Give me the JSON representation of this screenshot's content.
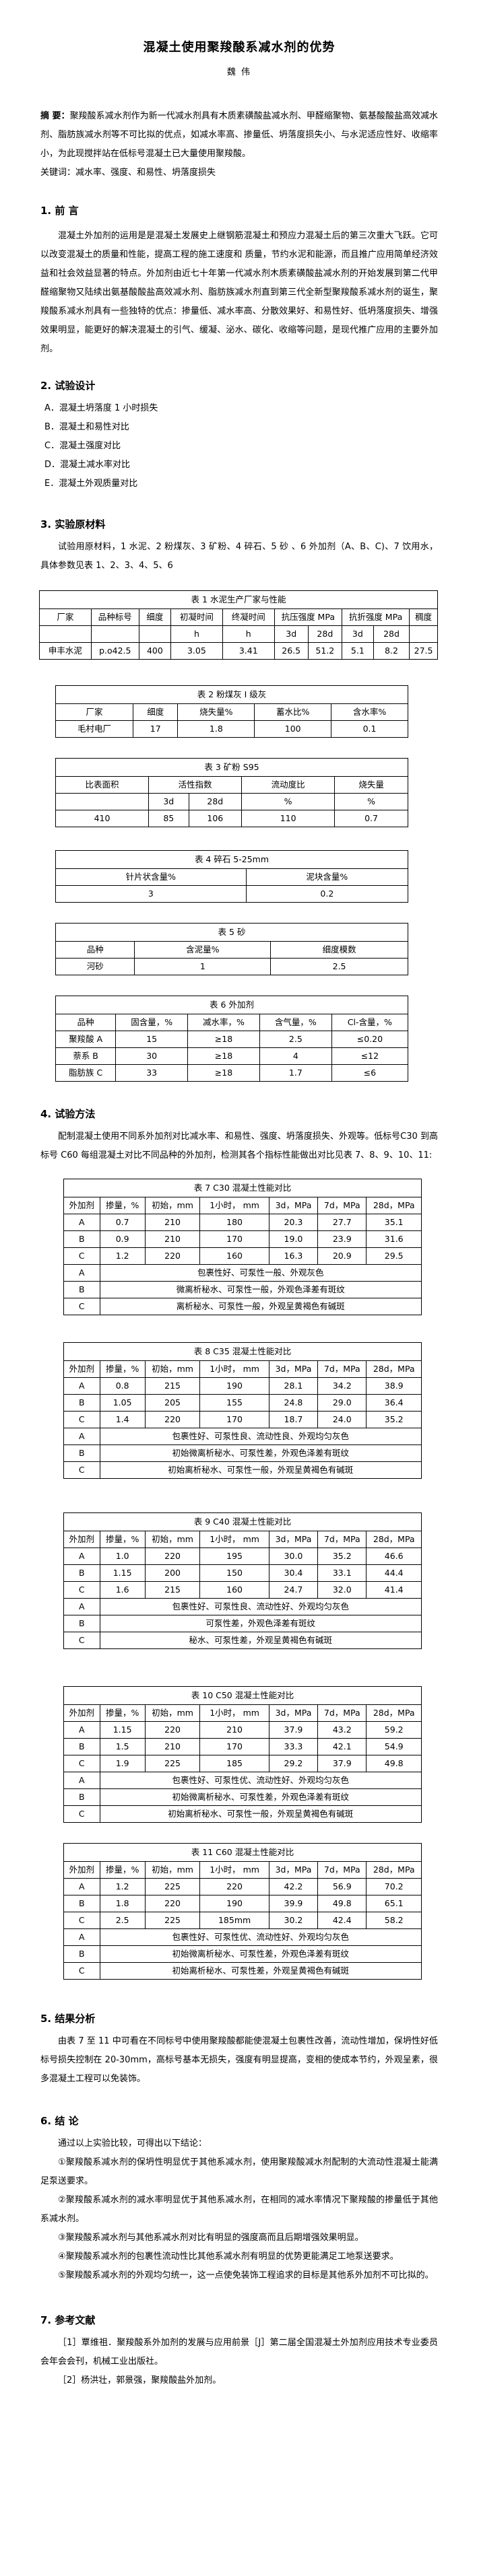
{
  "page": {
    "title": "混凝土使用聚羧酸系减水剂的优势",
    "author": "魏 伟",
    "abstract_label": "摘 要：",
    "abstract_text": "聚羧酸系减水剂作为新一代减水剂具有木质素磺酸盐减水剂、甲醛缩聚物、氨基酸酸盐高效减水剂、脂肪族减水剂等不可比拟的优点，如减水率高、掺量低、坍落度损失小、与水泥适应性好、收缩率小，为此现搅拌站在低标号混凝土已大量使用聚羧酸。",
    "keywords": "关键词：减水率、强度、和易性、坍落度损失"
  },
  "sections": {
    "s1": {
      "heading": "1. 前 言",
      "body": "混凝土外加剂的运用是是混凝土发展史上继钢筋混凝土和预应力混凝土后的第三次重大飞跃。它可以改变混凝土的质量和性能，提高工程的施工速度和 质量，节约水泥和能源，而且推广应用简单经济效益和社会效益显著的特点。外加剂由近七十年第一代减水剂木质素磺酸盐减水剂的开始发展到第二代甲醛缩聚物又陆续出氨基酸酸盐高效减水剂、脂肪族减水剂直到第三代全新型聚羧酸系减水剂的诞生，聚羧酸系减水剂具有一些独特的优点：掺量低、减水率高、分散效果好、和易性好、低坍落度损失、增强效果明显，能更好的解决混凝土的引气、缓凝、泌水、碳化、收缩等问题，是现代推广应用的主要外加剂。"
    },
    "s2": {
      "heading": "2. 试验设计",
      "items": [
        "A．混凝土坍落度 1 小时损失",
        "B．混凝土和易性对比",
        "C．混凝土强度对比",
        "D．混凝土减水率对比",
        "E．混凝土外观质量对比"
      ]
    },
    "s3": {
      "heading": "3. 实验原材料",
      "body": "试验用原材料，1 水泥、2 粉煤灰、3 矿粉、4 碎石、5 砂 、6 外加剂（A、B、C)、7 饮用水，具体参数见表 1、2、3、4、5、6"
    },
    "s4": {
      "heading": "4. 试验方法",
      "body": "配制混凝土使用不同系外加剂对比减水率、和易性、强度、坍落度损失、外观等。低标号C30 到高标号 C60 每组混凝土对比不同品种的外加剂，检测其各个指标性能做出对比见表 7、8、9、10、11:"
    },
    "s5": {
      "heading": "5. 结果分析",
      "body": "由表 7 至 11 中可看在不同标号中使用聚羧酸都能使混凝土包裹性改善，流动性增加，保坍性好低标号损失控制在 20-30mm，高标号基本无损失，强度有明显提高，变相的使成本节约，外观呈素，很多混凝土工程可以免装饰。"
    },
    "s6": {
      "heading": "6. 结 论",
      "intro": "通过以上实验比较，可得出以下结论：",
      "items": [
        "①聚羧酸系减水剂的保坍性明显优于其他系减水剂，使用聚羧酸减水剂配制的大流动性混凝土能满足泵送要求。",
        "②聚羧酸系减水剂的减水率明显优于其他系减水剂，在相同的减水率情况下聚羧酸的掺量低于其他系减水剂。",
        "③聚羧酸系减水剂与其他系减水剂对比有明显的强度高而且后期增强效果明显。",
        "④聚羧酸系减水剂的包裹性流动性比其他系减水剂有明显的优势更能满足工地泵送要求。",
        "⑤聚羧酸系减水剂的外观均匀统一，这一点使免装饰工程追求的目标是其他系外加剂不可比拟的。"
      ]
    },
    "s7": {
      "heading": "7. 参考文献",
      "items": [
        "［1］覃维祖．聚羧酸系外加剂的发展与应用前景［J］第二届全国混凝土外加剂应用技术专业委员会年会会刊，机械工业出版社。",
        "［2］杨洪壮，郭景强，聚羧酸盐外加剂。"
      ]
    }
  },
  "tables": {
    "t1": {
      "title": "表 1 水泥生产厂家与性能",
      "cols": 10,
      "header": [
        [
          {
            "t": "厂家"
          },
          {
            "t": "品种标号"
          },
          {
            "t": "细度"
          },
          {
            "t": "初凝时间"
          },
          {
            "t": "终凝时间"
          },
          {
            "t": "抗压强度 MPa",
            "cs": 2
          },
          {
            "t": "抗折强度 MPa",
            "cs": 2
          },
          {
            "t": "稠度"
          }
        ],
        [
          {
            "t": ""
          },
          {
            "t": ""
          },
          {
            "t": ""
          },
          {
            "t": "h"
          },
          {
            "t": "h"
          },
          {
            "t": "3d"
          },
          {
            "t": "28d"
          },
          {
            "t": "3d"
          },
          {
            "t": "28d"
          },
          {
            "t": ""
          }
        ]
      ],
      "rows": [
        [
          "申丰水泥",
          "p.o42.5",
          "400",
          "3.05",
          "3.41",
          "26.5",
          "51.2",
          "5.1",
          "8.2",
          "27.5"
        ]
      ]
    },
    "t2": {
      "title": "表 2 粉煤灰 I 级灰",
      "cols": 5,
      "header": [
        [
          {
            "t": "厂家"
          },
          {
            "t": "细度"
          },
          {
            "t": "烧失量%"
          },
          {
            "t": "蓄水比%"
          },
          {
            "t": "含水率%"
          }
        ]
      ],
      "rows": [
        [
          "毛村电厂",
          "17",
          "1.8",
          "100",
          "0.1"
        ]
      ]
    },
    "t3": {
      "title": "表 3 矿粉 S95",
      "cols": 5,
      "header": [
        [
          {
            "t": "比表面积"
          },
          {
            "t": "活性指数",
            "cs": 2
          },
          {
            "t": "流动度比"
          },
          {
            "t": "烧失量"
          }
        ],
        [
          {
            "t": ""
          },
          {
            "t": "3d"
          },
          {
            "t": "28d"
          },
          {
            "t": "%"
          },
          {
            "t": "%"
          }
        ]
      ],
      "rows": [
        [
          "410",
          "85",
          "106",
          "110",
          "0.7"
        ]
      ]
    },
    "t4": {
      "title": "表 4 碎石  5-25mm",
      "cols": 2,
      "header": [
        [
          {
            "t": "针片状含量%"
          },
          {
            "t": "泥块含量%"
          }
        ]
      ],
      "rows": [
        [
          "3",
          "0.2"
        ]
      ]
    },
    "t5": {
      "title": "表 5 砂",
      "cols": 3,
      "header": [
        [
          {
            "t": "品种"
          },
          {
            "t": "含泥量%"
          },
          {
            "t": "细度模数"
          }
        ]
      ],
      "rows": [
        [
          "河砂",
          "1",
          "2.5"
        ]
      ]
    },
    "t6": {
      "title": "表 6 外加剂",
      "cols": 5,
      "header": [
        [
          {
            "t": "品种"
          },
          {
            "t": "固含量，%"
          },
          {
            "t": "减水率，%"
          },
          {
            "t": "含气量，%"
          },
          {
            "t": "Cl-含量，%"
          }
        ]
      ],
      "rows": [
        [
          "聚羧酸 A",
          "15",
          "≥18",
          "2.5",
          "≤0.20"
        ],
        [
          "萘系 B",
          "30",
          "≥18",
          "4",
          "≤12"
        ],
        [
          "脂肪族 C",
          "33",
          "≥18",
          "1.7",
          "≤6"
        ]
      ]
    },
    "t7": {
      "title": "表 7 C30 混凝土性能对比",
      "cols": 7,
      "header": [
        [
          {
            "t": "外加剂"
          },
          {
            "t": "掺量，%"
          },
          {
            "t": "初始，mm"
          },
          {
            "t": "1小时， mm"
          },
          {
            "t": "3d，MPa"
          },
          {
            "t": "7d，MPa"
          },
          {
            "t": "28d，MPa"
          }
        ]
      ],
      "rows": [
        [
          "A",
          "0.7",
          "210",
          "180",
          "20.3",
          "27.7",
          "35.1"
        ],
        [
          "B",
          "0.9",
          "210",
          "170",
          "19.0",
          "23.9",
          "31.6"
        ],
        [
          "C",
          "1.2",
          "220",
          "160",
          "16.3",
          "20.9",
          "29.5"
        ]
      ],
      "remarks": [
        [
          "A",
          "包裹性好、可泵性一般、外观灰色"
        ],
        [
          "B",
          "微离析秘水、可泵性一般，外观色泽差有斑纹"
        ],
        [
          "C",
          "离析秘水、可泵性一般，外观呈黄褐色有碱斑"
        ]
      ]
    },
    "t8": {
      "title": "表 8  C35 混凝土性能对比",
      "cols": 7,
      "header": [
        [
          {
            "t": "外加剂"
          },
          {
            "t": "掺量，%"
          },
          {
            "t": "初始，mm"
          },
          {
            "t": "1小时， mm"
          },
          {
            "t": "3d，MPa"
          },
          {
            "t": "7d，MPa"
          },
          {
            "t": "28d，MPa"
          }
        ]
      ],
      "rows": [
        [
          "A",
          "0.8",
          "215",
          "190",
          "28.1",
          "34.2",
          "38.9"
        ],
        [
          "B",
          "1.05",
          "205",
          "155",
          "24.8",
          "29.0",
          "36.4"
        ],
        [
          "C",
          "1.4",
          "220",
          "170",
          "18.7",
          "24.0",
          "35.2"
        ]
      ],
      "remarks": [
        [
          "A",
          "包裹性好、可泵性良、流动性良、外观均匀灰色"
        ],
        [
          "B",
          "初始微离析秘水、可泵性差，外观色泽差有斑纹"
        ],
        [
          "C",
          "初始离析秘水、可泵性一般，外观呈黄褐色有碱斑"
        ]
      ]
    },
    "t9": {
      "title": "表 9  C40 混凝土性能对比",
      "cols": 7,
      "header": [
        [
          {
            "t": "外加剂"
          },
          {
            "t": "掺量，%"
          },
          {
            "t": "初始，mm"
          },
          {
            "t": "1小时， mm"
          },
          {
            "t": "3d，MPa"
          },
          {
            "t": "7d，MPa"
          },
          {
            "t": "28d，MPa"
          }
        ]
      ],
      "rows": [
        [
          "A",
          "1.0",
          "220",
          "195",
          "30.0",
          "35.2",
          "46.6"
        ],
        [
          "B",
          "1.15",
          "200",
          "150",
          "30.4",
          "33.1",
          "44.4"
        ],
        [
          "C",
          "1.6",
          "215",
          "160",
          "24.7",
          "32.0",
          "41.4"
        ]
      ],
      "remarks": [
        [
          "A",
          "包裹性好、可泵性良、流动性好、外观均匀灰色"
        ],
        [
          "B",
          "可泵性差，外观色泽差有斑纹"
        ],
        [
          "C",
          "秘水、可泵性差，外观呈黄褐色有碱斑"
        ]
      ]
    },
    "t10": {
      "title": "表 10  C50 混凝土性能对比",
      "cols": 7,
      "header": [
        [
          {
            "t": "外加剂"
          },
          {
            "t": "掺量，%"
          },
          {
            "t": "初始，mm"
          },
          {
            "t": "1小时， mm"
          },
          {
            "t": "3d，MPa"
          },
          {
            "t": "7d，MPa"
          },
          {
            "t": "28d，MPa"
          }
        ]
      ],
      "rows": [
        [
          "A",
          "1.15",
          "220",
          "210",
          "37.9",
          "43.2",
          "59.2"
        ],
        [
          "B",
          "1.5",
          "210",
          "170",
          "33.3",
          "42.1",
          "54.9"
        ],
        [
          "C",
          "1.9",
          "225",
          "185",
          "29.2",
          "37.9",
          "49.8"
        ]
      ],
      "remarks": [
        [
          "A",
          "包裹性好、可泵性优、流动性好、外观均匀灰色"
        ],
        [
          "B",
          "初始微离析秘水、可泵性差，外观色泽差有斑纹"
        ],
        [
          "C",
          "初始离析秘水、可泵性一般，外观呈黄褐色有碱斑"
        ]
      ]
    },
    "t11": {
      "title": "表 11  C60 混凝土性能对比",
      "cols": 7,
      "header": [
        [
          {
            "t": "外加剂"
          },
          {
            "t": "掺量，%"
          },
          {
            "t": "初始，mm"
          },
          {
            "t": "1小时， mm"
          },
          {
            "t": "3d，MPa"
          },
          {
            "t": "7d，MPa"
          },
          {
            "t": "28d，MPa"
          }
        ]
      ],
      "rows": [
        [
          "A",
          "1.2",
          "225",
          "220",
          "42.2",
          "56.9",
          "70.2"
        ],
        [
          "B",
          "1.8",
          "220",
          "190",
          "39.9",
          "49.8",
          "65.1"
        ],
        [
          "C",
          "2.5",
          "225",
          "185mm",
          "30.2",
          "42.4",
          "58.2"
        ]
      ],
      "remarks": [
        [
          "A",
          "包裹性好、可泵性优、流动性好、外观均匀灰色"
        ],
        [
          "B",
          "初始微离析秘水、可泵性差，外观色泽差有斑纹"
        ],
        [
          "C",
          "初始离析秘水、可泵性差，外观呈黄褐色有碱斑"
        ]
      ]
    }
  }
}
